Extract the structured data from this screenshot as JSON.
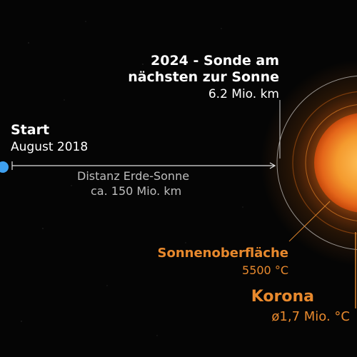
{
  "colors": {
    "background": "#050505",
    "earth": "#3ea0f0",
    "sun_core": "#ffb347",
    "sun_edge": "#e0560c",
    "orange_label": "#e8892d"
  },
  "closest": {
    "line1": "2024 - Sonde am",
    "line2": "nächsten zur Sonne",
    "distance": "6.2 Mio. km"
  },
  "start": {
    "title": "Start",
    "date": "August 2018"
  },
  "distance_label": {
    "line1": "Distanz Erde-Sonne",
    "line2": "ca. 150 Mio. km"
  },
  "surface": {
    "title": "Sonnenoberfläche",
    "temp": "5500 °C"
  },
  "corona": {
    "title": "Korona",
    "size": "ø1,7 Mio. °C"
  }
}
